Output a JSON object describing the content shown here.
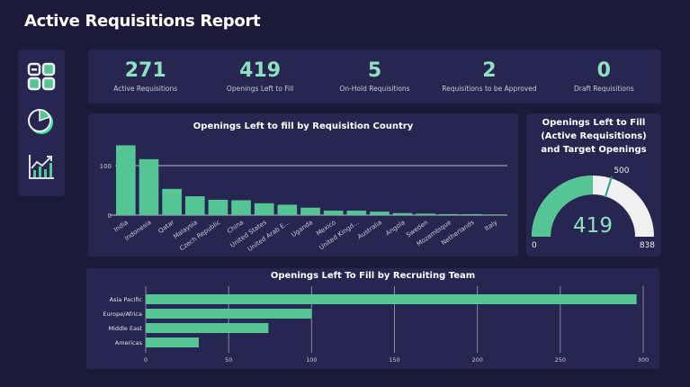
{
  "header": {
    "title": "Active Requisitions Report"
  },
  "sidebar": {
    "items": [
      {
        "icon": "dashboard-grid-icon"
      },
      {
        "icon": "pie-chart-icon"
      },
      {
        "icon": "line-chart-icon"
      }
    ]
  },
  "kpis": [
    {
      "value": "271",
      "label": "Active Requisitions"
    },
    {
      "value": "419",
      "label": "Openings Left to Fill"
    },
    {
      "value": "5",
      "label": "On-Hold Requisitions"
    },
    {
      "value": "2",
      "label": "Requisitions to be Approved"
    },
    {
      "value": "0",
      "label": "Draft Requisitions"
    }
  ],
  "colors": {
    "bar": "#55c595",
    "accent_text": "#8fe0c2",
    "gauge_rest": "#f0f0f0",
    "target": "#2aa198",
    "panel": "#262650",
    "background": "#1c1a38"
  },
  "chart_data": [
    {
      "type": "bar",
      "title": "Openings Left to fill by Requisition Country",
      "categories": [
        "India",
        "Indonesia",
        "Qatar",
        "Malaysia",
        "Czech Republic",
        "China",
        "United States",
        "United Arab E...",
        "Uganda",
        "Mexico",
        "United Kingd...",
        "Australia",
        "Angola",
        "Sweden",
        "Mozambique",
        "Netherlands",
        "Italy"
      ],
      "values": [
        141,
        113,
        53,
        38,
        31,
        30,
        24,
        21,
        15,
        9,
        9,
        7,
        4,
        3,
        2,
        2,
        1
      ],
      "yticks": [
        "0",
        "100"
      ],
      "ylim": [
        0,
        150
      ],
      "grid": true
    },
    {
      "type": "gauge",
      "title": "Openings Left to Fill (Active Requisitions) and Target Openings",
      "value": 419,
      "target": 500,
      "min": 0,
      "max": 838,
      "value_label": "419",
      "target_label": "500",
      "min_label": "0",
      "max_label": "838"
    },
    {
      "type": "bar",
      "orientation": "horizontal",
      "title": "Openings Left To Fill by Recruiting Team",
      "categories": [
        "Asia Pacific",
        "Europe/Africa",
        "Middle East",
        "Americas"
      ],
      "values": [
        296,
        100,
        74,
        32
      ],
      "xticks": [
        "0",
        "50",
        "100",
        "150",
        "200",
        "250",
        "300"
      ],
      "xlim": [
        0,
        300
      ],
      "grid": true
    }
  ]
}
